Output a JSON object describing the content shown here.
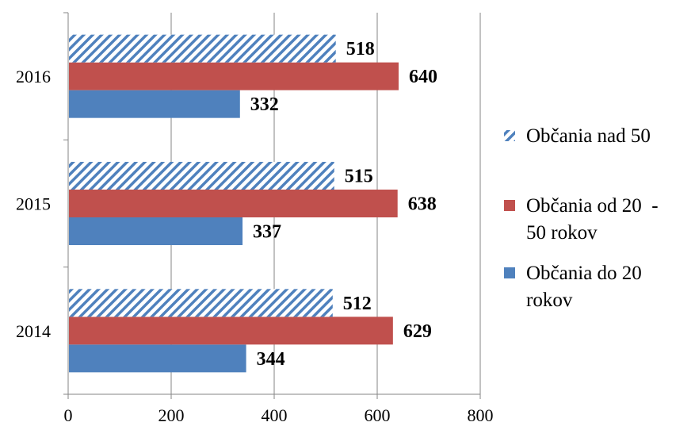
{
  "chart_data": {
    "type": "bar",
    "orientation": "horizontal",
    "categories": [
      "2014",
      "2015",
      "2016"
    ],
    "series": [
      {
        "name": "Občania do 20 rokov",
        "values": [
          344,
          337,
          332
        ],
        "color": "#4F81BD",
        "pattern": "solid"
      },
      {
        "name": "Občania od 20  - 50 rokov",
        "values": [
          629,
          638,
          640
        ],
        "color": "#C0504D",
        "pattern": "solid"
      },
      {
        "name": "Občania nad 50",
        "values": [
          512,
          515,
          518
        ],
        "color": "#4F81BD",
        "pattern": "diagonal-hatch"
      }
    ],
    "xlim": [
      0,
      800
    ],
    "xticks": [
      "0",
      "200",
      "400",
      "600",
      "800"
    ],
    "grid": true,
    "legend_position": "right",
    "legend_order": [
      2,
      1,
      0
    ],
    "legend_labels": [
      [
        "Občania nad 50"
      ],
      [
        "Občania od 20  -",
        "50 rokov"
      ],
      [
        "Občania do 20",
        "rokov"
      ]
    ],
    "title": "",
    "xlabel": "",
    "ylabel": ""
  }
}
